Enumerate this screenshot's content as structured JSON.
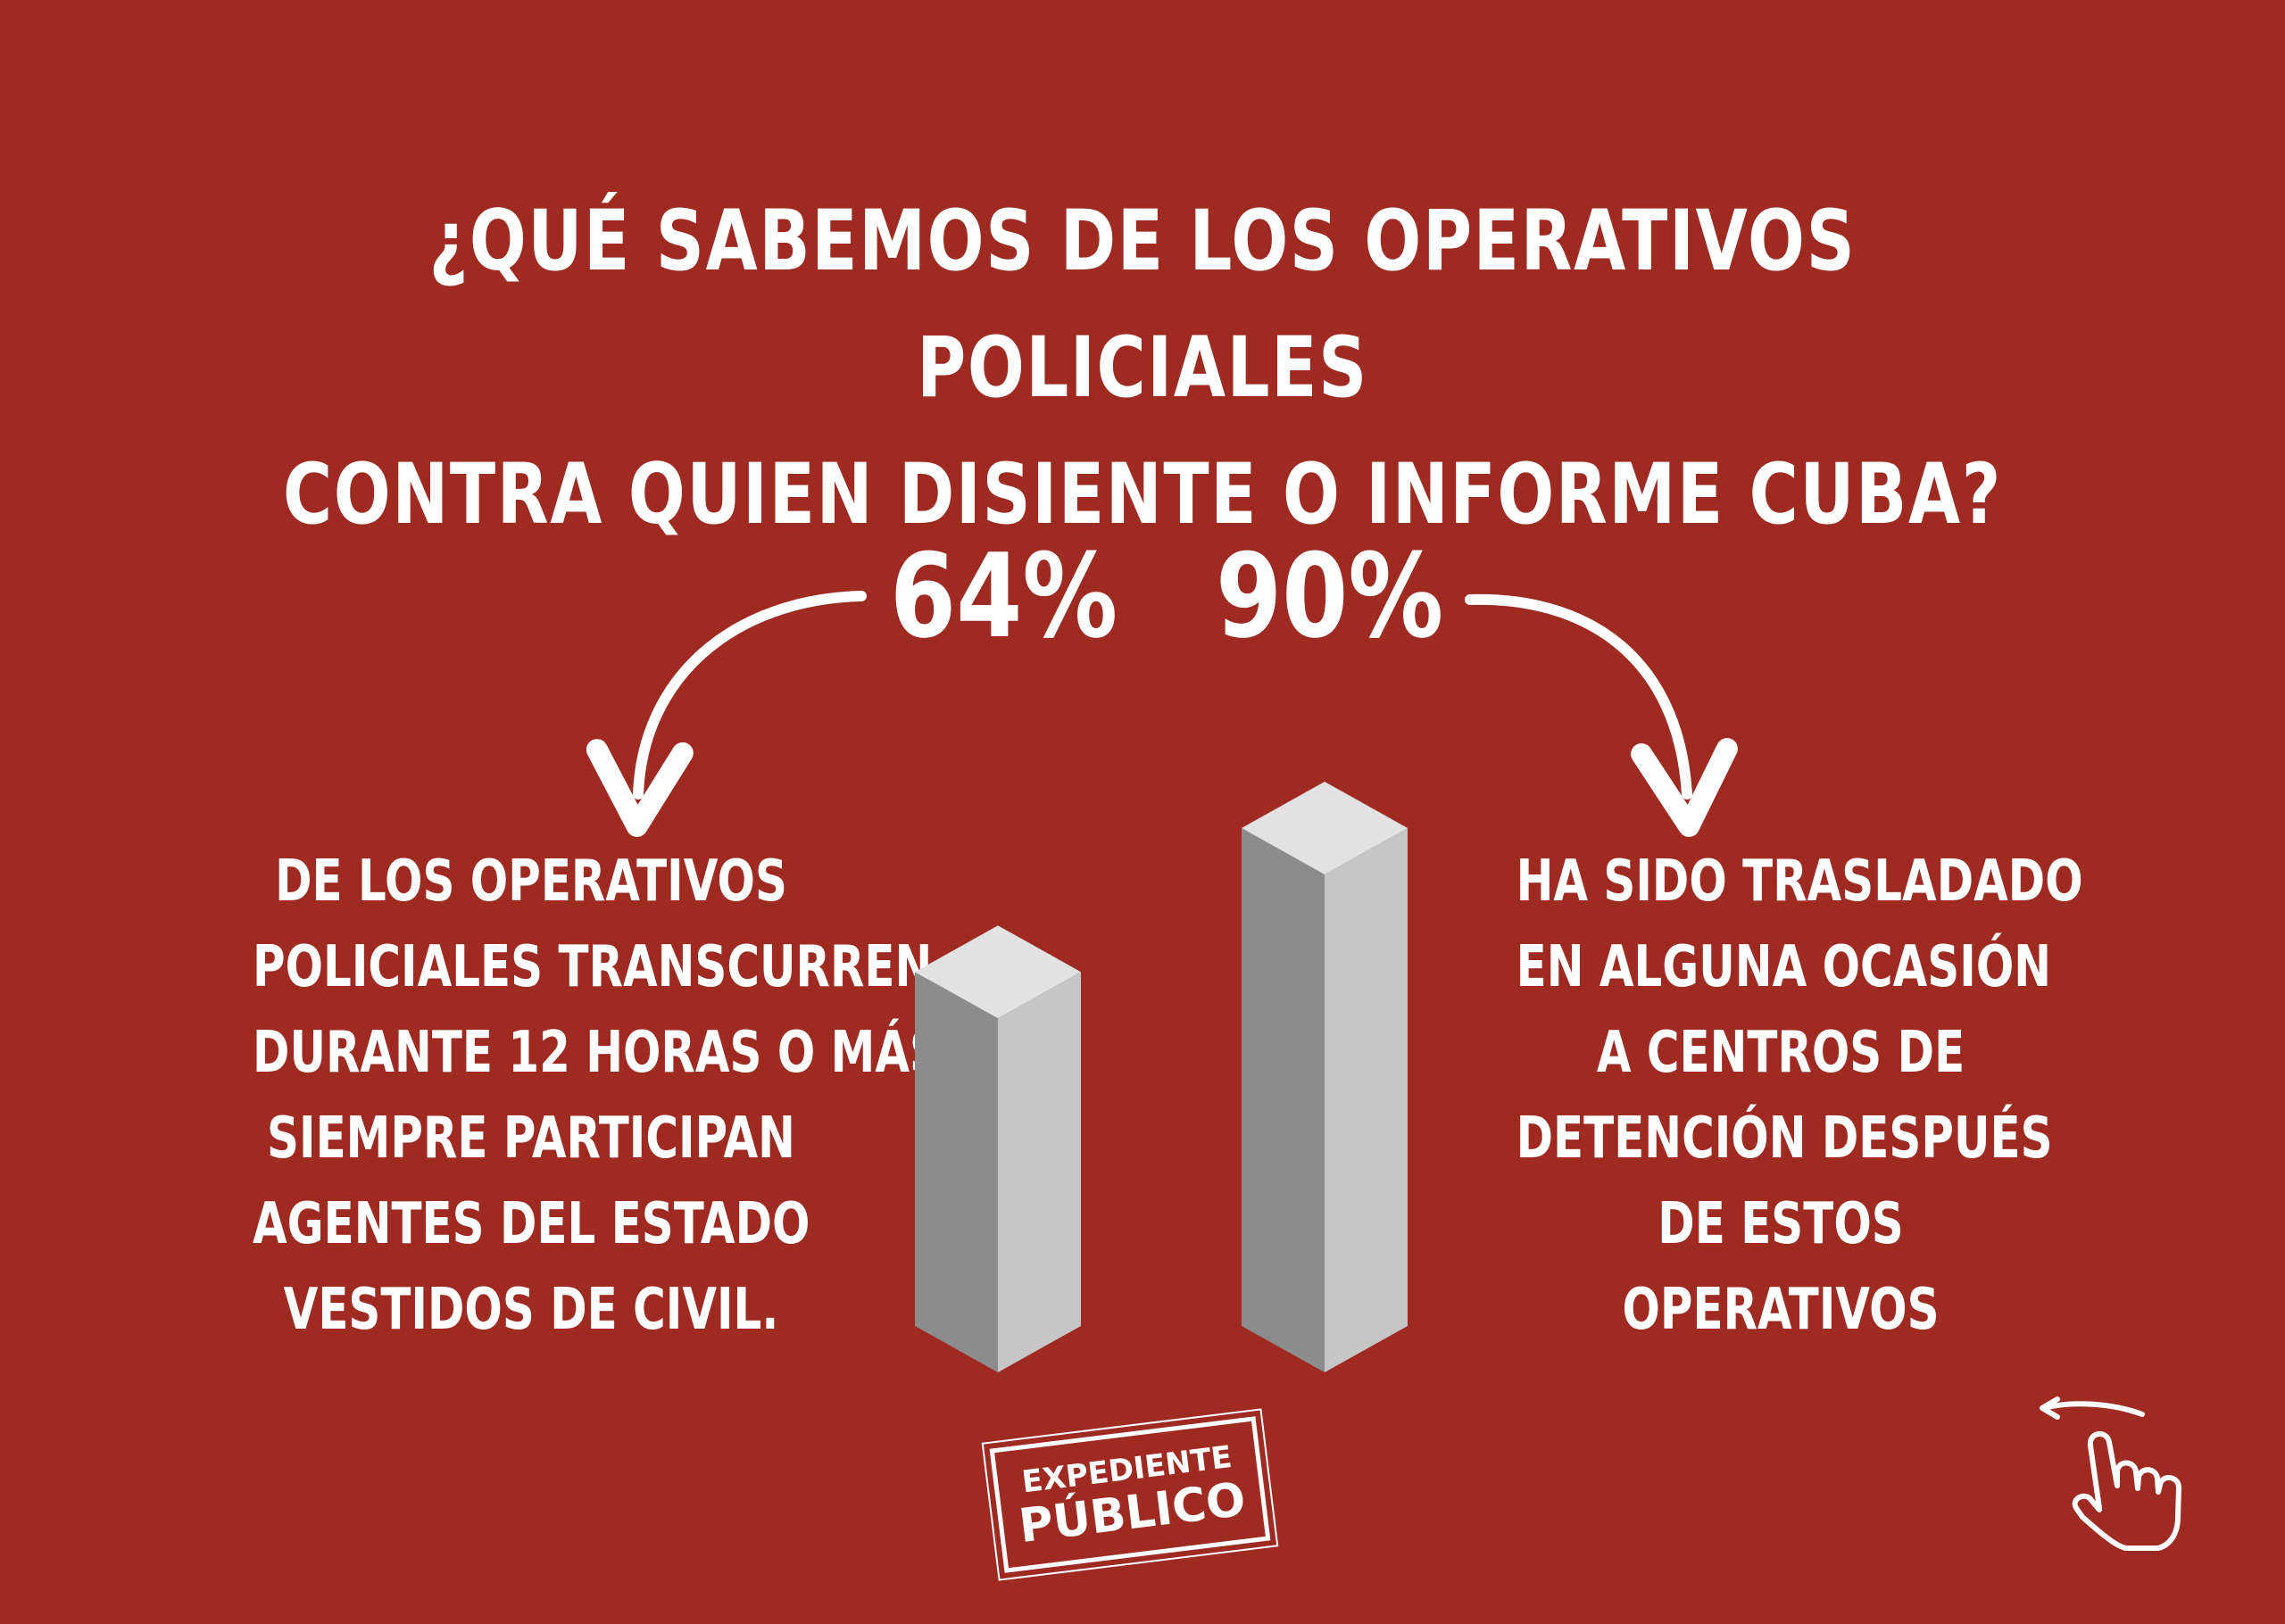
{
  "title": {
    "line1": "¿QUÉ SABEMOS DE LOS OPERATIVOS POLICIALES",
    "line2": "CONTRA QUIEN DISIENTE O INFORME CUBA?"
  },
  "chart_data": {
    "type": "bar",
    "title": "¿QUÉ SABEMOS DE LOS OPERATIVOS POLICIALES CONTRA QUIEN DISIENTE O INFORME CUBA?",
    "categories": [
      "64%",
      "90%"
    ],
    "values": [
      64,
      90
    ],
    "unit": "%",
    "ylim": [
      0,
      100
    ],
    "data_labels": [
      "64%",
      "90%"
    ],
    "annotations": [
      {
        "for": "64%",
        "lines": [
          "DE LOS OPERATIVOS",
          "POLICIALES TRANSCURREN",
          "DURANTE 12 HORAS O MÁS.",
          "SIEMPRE PARTICIPAN",
          "AGENTES DEL ESTADO",
          "VESTIDOS DE CIVIL."
        ]
      },
      {
        "for": "90%",
        "lines": [
          "HA SIDO TRASLADADO",
          "EN ALGUNA OCASIÓN",
          "A CENTROS DE",
          "DETENCIÓN DESPUÉS",
          "DE ESTOS",
          "OPERATIVOS"
        ]
      }
    ],
    "grid": false,
    "legend": "none",
    "colors": {
      "background": "#9e2a22",
      "bar_top": "#e2e2e2",
      "bar_left": "#8c8c8c",
      "bar_right": "#c6c6c6",
      "text": "#ffffff"
    }
  },
  "logo": {
    "line1": "EXPEDIENTE",
    "line2": "PÚBLICO"
  },
  "swipe_hint": {
    "icon": "swipe-hand-icon"
  }
}
